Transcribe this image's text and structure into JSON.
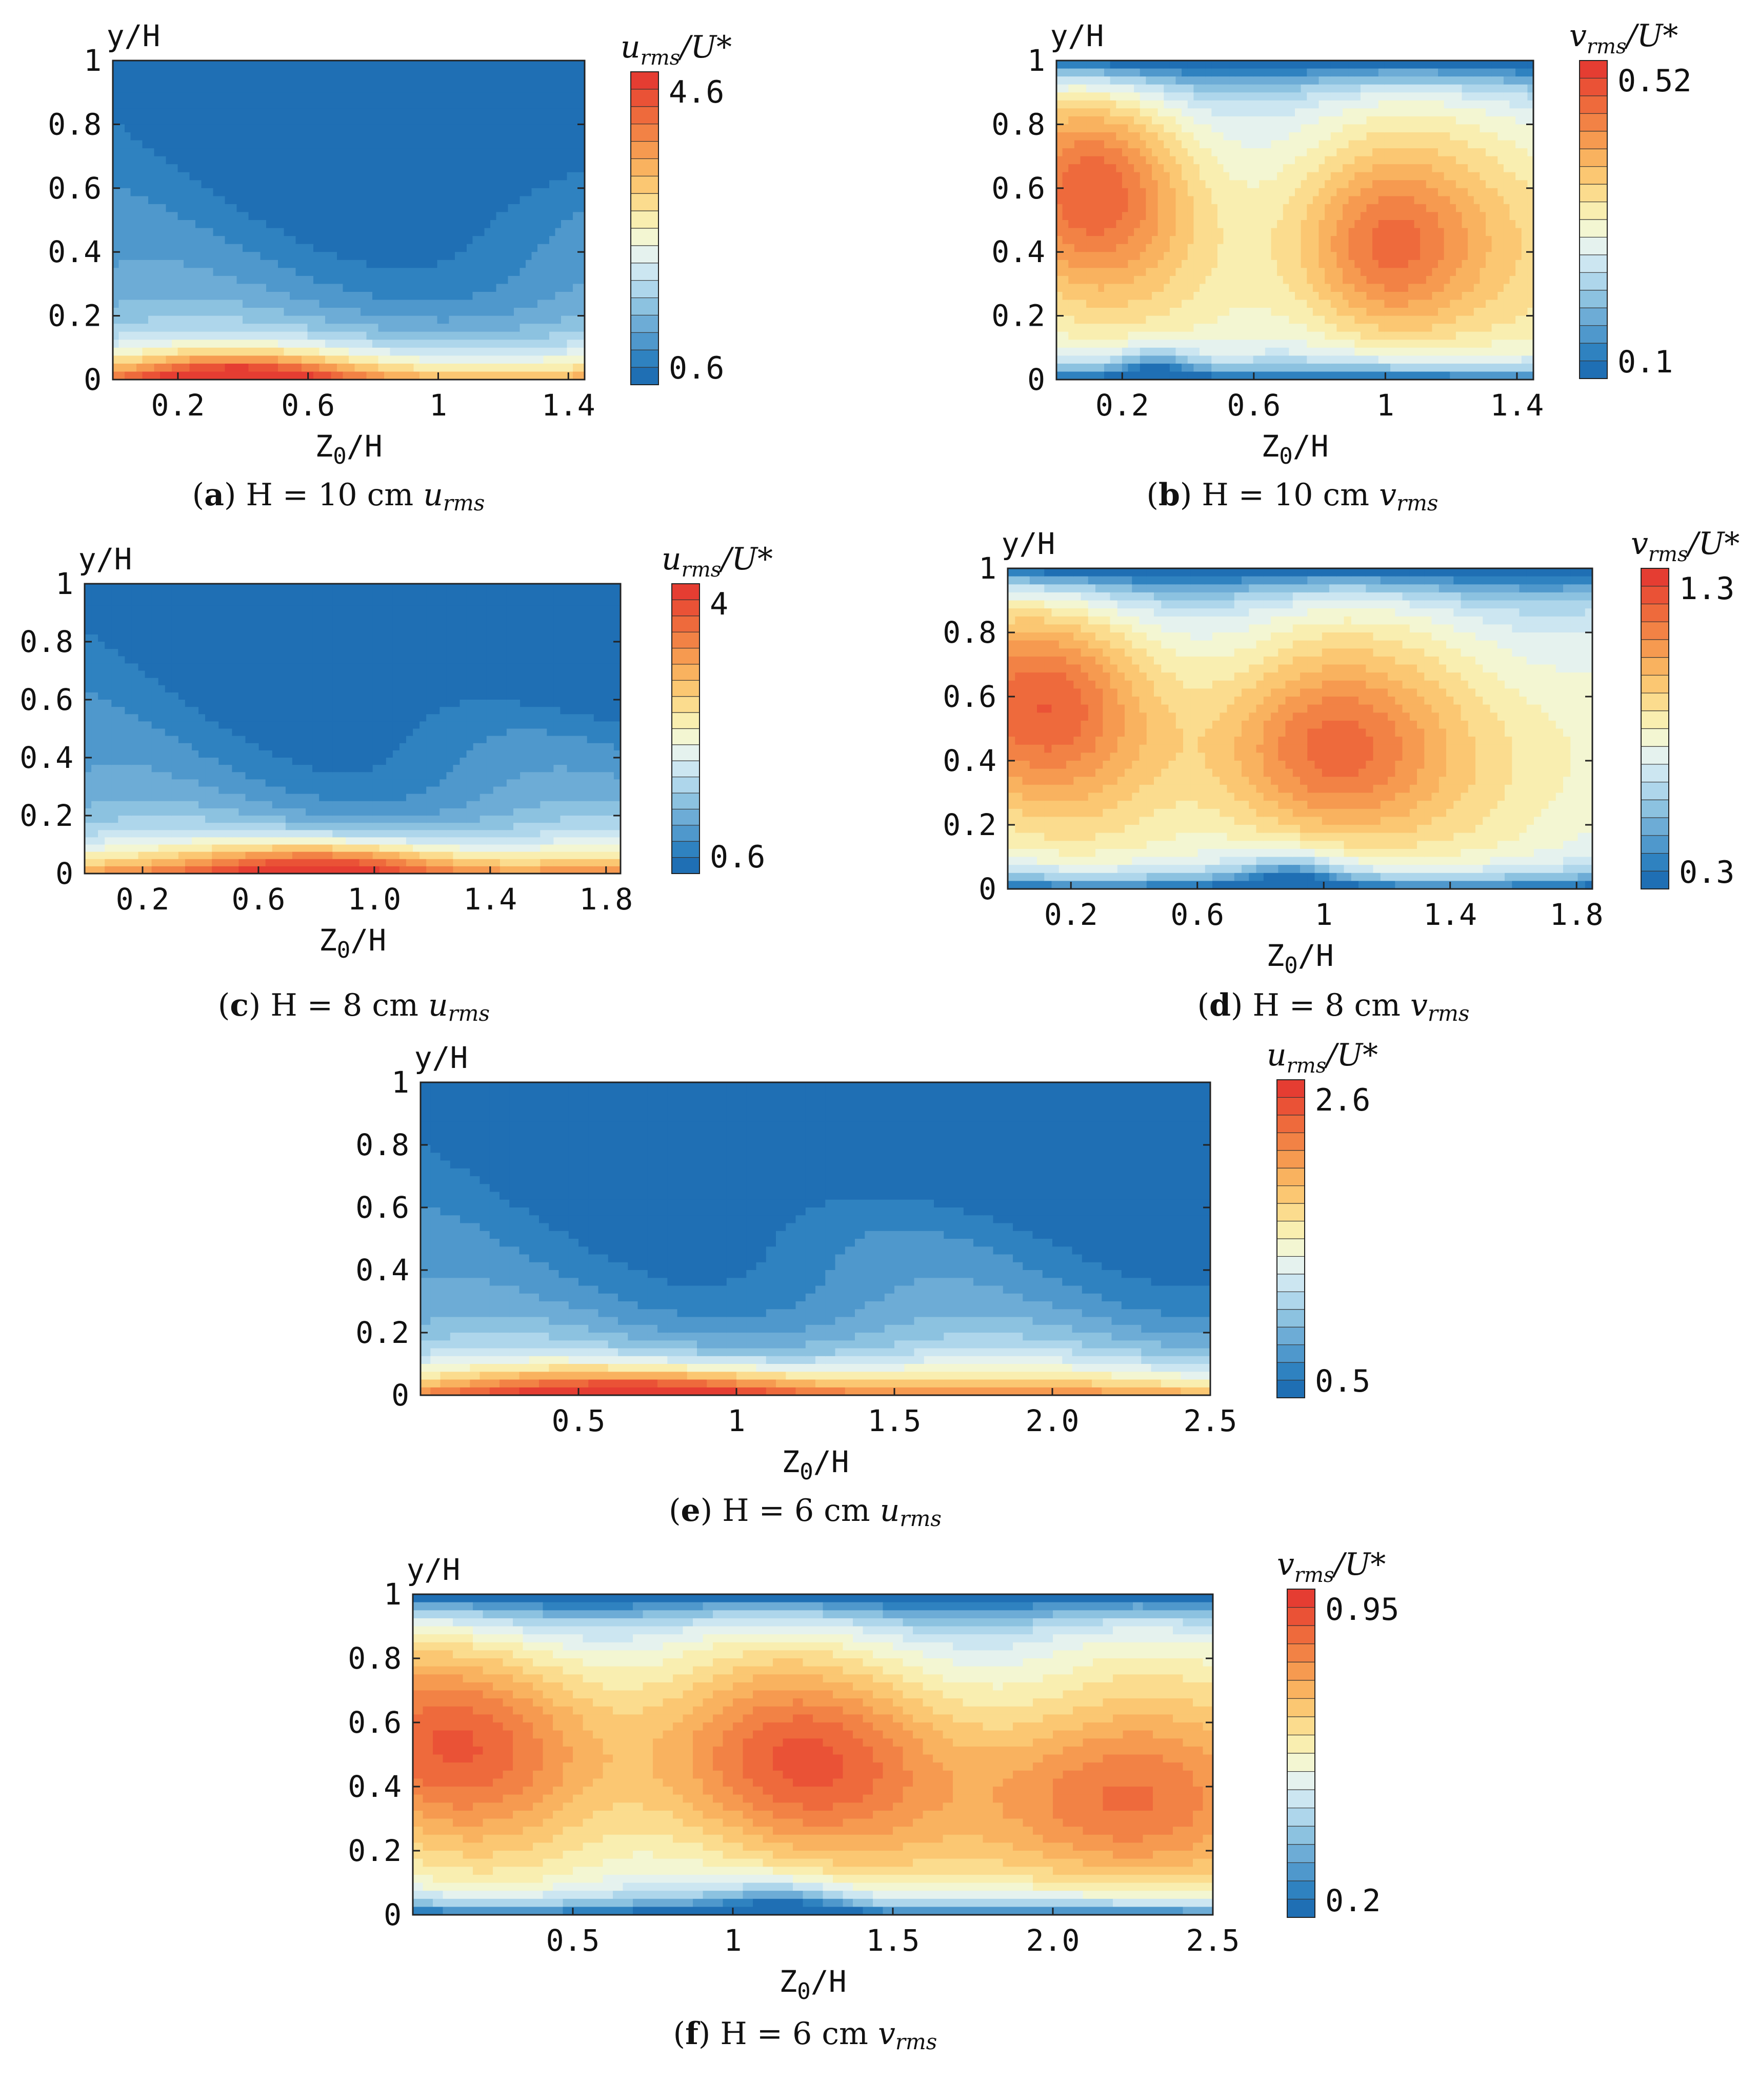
{
  "chart_data": [
    {
      "type": "heatmap",
      "id": "a",
      "caption": {
        "letter": "a",
        "text": "H = 10 cm ",
        "var": "u",
        "sub": "rms"
      },
      "ylabel": "y/H",
      "xlabel": "Z0/H",
      "xticks": [
        "0.2",
        "0.6",
        "1",
        "1.4"
      ],
      "xtick_values": [
        0.2,
        0.6,
        1.0,
        1.4
      ],
      "yticks": [
        "0",
        "0.2",
        "0.4",
        "0.6",
        "0.8",
        "1"
      ],
      "ytick_values": [
        0,
        0.2,
        0.4,
        0.6,
        0.8,
        1.0
      ],
      "xlim": [
        0.0,
        1.45
      ],
      "ylim": [
        0,
        1
      ],
      "colorbar": {
        "label_var": "u",
        "label_sub": "rms",
        "label_den": "/U*",
        "max_label": "4.6",
        "min_label": "0.6",
        "min": 0.6,
        "max": 4.6,
        "palette": "blue-red",
        "levels": 21
      },
      "surface": {
        "type": "urms",
        "peak_z": 0.38,
        "peak_y": 0.0,
        "low_z": 1.0,
        "low_y": 0.88
      }
    },
    {
      "type": "heatmap",
      "id": "b",
      "caption": {
        "letter": "b",
        "text": "H = 10 cm ",
        "var": "v",
        "sub": "rms"
      },
      "ylabel": "y/H",
      "xlabel": "Z0/H",
      "xticks": [
        "0.2",
        "0.6",
        "1",
        "1.4"
      ],
      "xtick_values": [
        0.2,
        0.6,
        1.0,
        1.4
      ],
      "yticks": [
        "0",
        "0.2",
        "0.4",
        "0.6",
        "0.8",
        "1"
      ],
      "ytick_values": [
        0,
        0.2,
        0.4,
        0.6,
        0.8,
        1.0
      ],
      "xlim": [
        0.0,
        1.45
      ],
      "ylim": [
        0,
        1
      ],
      "colorbar": {
        "label_var": "v",
        "label_sub": "rms",
        "label_den": "/U*",
        "max_label": "0.52",
        "min_label": "0.1",
        "min": 0.1,
        "max": 0.52,
        "palette": "blue-red",
        "levels": 21
      },
      "surface": {
        "type": "vrms",
        "peaks": [
          [
            0.12,
            0.62
          ],
          [
            1.0,
            0.4
          ]
        ],
        "low_z": 0.3
      }
    },
    {
      "type": "heatmap",
      "id": "c",
      "caption": {
        "letter": "c",
        "text": "H = 8 cm ",
        "var": "u",
        "sub": "rms"
      },
      "ylabel": "y/H",
      "xlabel": "Z0/H",
      "xticks": [
        "0.2",
        "0.6",
        "1.0",
        "1.4",
        "1.8"
      ],
      "xtick_values": [
        0.2,
        0.6,
        1.0,
        1.4,
        1.8
      ],
      "yticks": [
        "0",
        "0.2",
        "0.4",
        "0.6",
        "0.8",
        "1"
      ],
      "ytick_values": [
        0,
        0.2,
        0.4,
        0.6,
        0.8,
        1.0
      ],
      "xlim": [
        0.0,
        1.85
      ],
      "ylim": [
        0,
        1
      ],
      "colorbar": {
        "label_var": "u",
        "label_sub": "rms",
        "label_den": "/U*",
        "max_label": "4",
        "min_label": "0.6",
        "min": 0.6,
        "max": 4.0,
        "palette": "blue-red",
        "levels": 21
      },
      "surface": {
        "type": "urms",
        "peak_z": 0.85,
        "peak_y": 0.03,
        "low_z": 1.8,
        "low_y": 0.85
      }
    },
    {
      "type": "heatmap",
      "id": "d",
      "caption": {
        "letter": "d",
        "text": "H = 8 cm ",
        "var": "v",
        "sub": "rms"
      },
      "ylabel": "y/H",
      "xlabel": "Z0/H",
      "xticks": [
        "0.2",
        "0.6",
        "1",
        "1.4",
        "1.8"
      ],
      "xtick_values": [
        0.2,
        0.6,
        1.0,
        1.4,
        1.8
      ],
      "yticks": [
        "0",
        "0.2",
        "0.4",
        "0.6",
        "0.8",
        "1"
      ],
      "ytick_values": [
        0,
        0.2,
        0.4,
        0.6,
        0.8,
        1.0
      ],
      "xlim": [
        0.0,
        1.85
      ],
      "ylim": [
        0,
        1
      ],
      "colorbar": {
        "label_var": "v",
        "label_sub": "rms",
        "label_den": "/U*",
        "max_label": "1.3",
        "min_label": "0.3",
        "min": 0.3,
        "max": 1.3,
        "palette": "blue-red",
        "levels": 21
      },
      "surface": {
        "type": "vrms",
        "peaks": [
          [
            0.12,
            0.6
          ],
          [
            1.0,
            0.42
          ]
        ],
        "low_z": 0.9
      }
    },
    {
      "type": "heatmap",
      "id": "e",
      "caption": {
        "letter": "e",
        "text": "H = 6 cm ",
        "var": "u",
        "sub": "rms"
      },
      "ylabel": "y/H",
      "xlabel": "Z0/H",
      "xticks": [
        "0.5",
        "1",
        "1.5",
        "2.0",
        "2.5"
      ],
      "xtick_values": [
        0.5,
        1.0,
        1.5,
        2.0,
        2.5
      ],
      "yticks": [
        "0",
        "0.2",
        "0.4",
        "0.6",
        "0.8",
        "1"
      ],
      "ytick_values": [
        0,
        0.2,
        0.4,
        0.6,
        0.8,
        1.0
      ],
      "xlim": [
        0.0,
        2.5
      ],
      "ylim": [
        0,
        1
      ],
      "colorbar": {
        "label_var": "u",
        "label_sub": "rms",
        "label_den": "/U*",
        "max_label": "2.6",
        "min_label": "0.5",
        "min": 0.5,
        "max": 2.6,
        "palette": "blue-red",
        "levels": 21
      },
      "surface": {
        "type": "urms",
        "peak_z": 0.75,
        "peak_y": 0.0,
        "low_z": 1.7,
        "low_y": 0.92
      }
    },
    {
      "type": "heatmap",
      "id": "f",
      "caption": {
        "letter": "f",
        "text": "H = 6 cm ",
        "var": "v",
        "sub": "rms"
      },
      "ylabel": "y/H",
      "xlabel": "Z0/H",
      "xticks": [
        "0.5",
        "1",
        "1.5",
        "2.0",
        "2.5"
      ],
      "xtick_values": [
        0.5,
        1.0,
        1.5,
        2.0,
        2.5
      ],
      "yticks": [
        "0",
        "0.2",
        "0.4",
        "0.6",
        "0.8",
        "1"
      ],
      "ytick_values": [
        0,
        0.2,
        0.4,
        0.6,
        0.8,
        1.0
      ],
      "xlim": [
        0.0,
        2.5
      ],
      "ylim": [
        0,
        1
      ],
      "colorbar": {
        "label_var": "v",
        "label_sub": "rms",
        "label_den": "/U*",
        "max_label": "0.95",
        "min_label": "0.2",
        "min": 0.2,
        "max": 0.95,
        "palette": "blue-red",
        "levels": 21
      },
      "surface": {
        "type": "vrms",
        "peaks": [
          [
            0.15,
            0.55
          ],
          [
            1.2,
            0.48
          ],
          [
            2.15,
            0.32
          ]
        ],
        "low_z": 1.17
      }
    }
  ],
  "colors": {
    "palette": [
      "#1f6fb4",
      "#2f82c0",
      "#4f98cc",
      "#6dacd6",
      "#8cc2e0",
      "#aed6eb",
      "#cce6f1",
      "#e5f2ee",
      "#f3f6d2",
      "#f9eeb0",
      "#fbdc8e",
      "#fbc772",
      "#f9b25f",
      "#f69a50",
      "#f28245",
      "#ee6a3c",
      "#ea5236",
      "#e53d32"
    ]
  }
}
